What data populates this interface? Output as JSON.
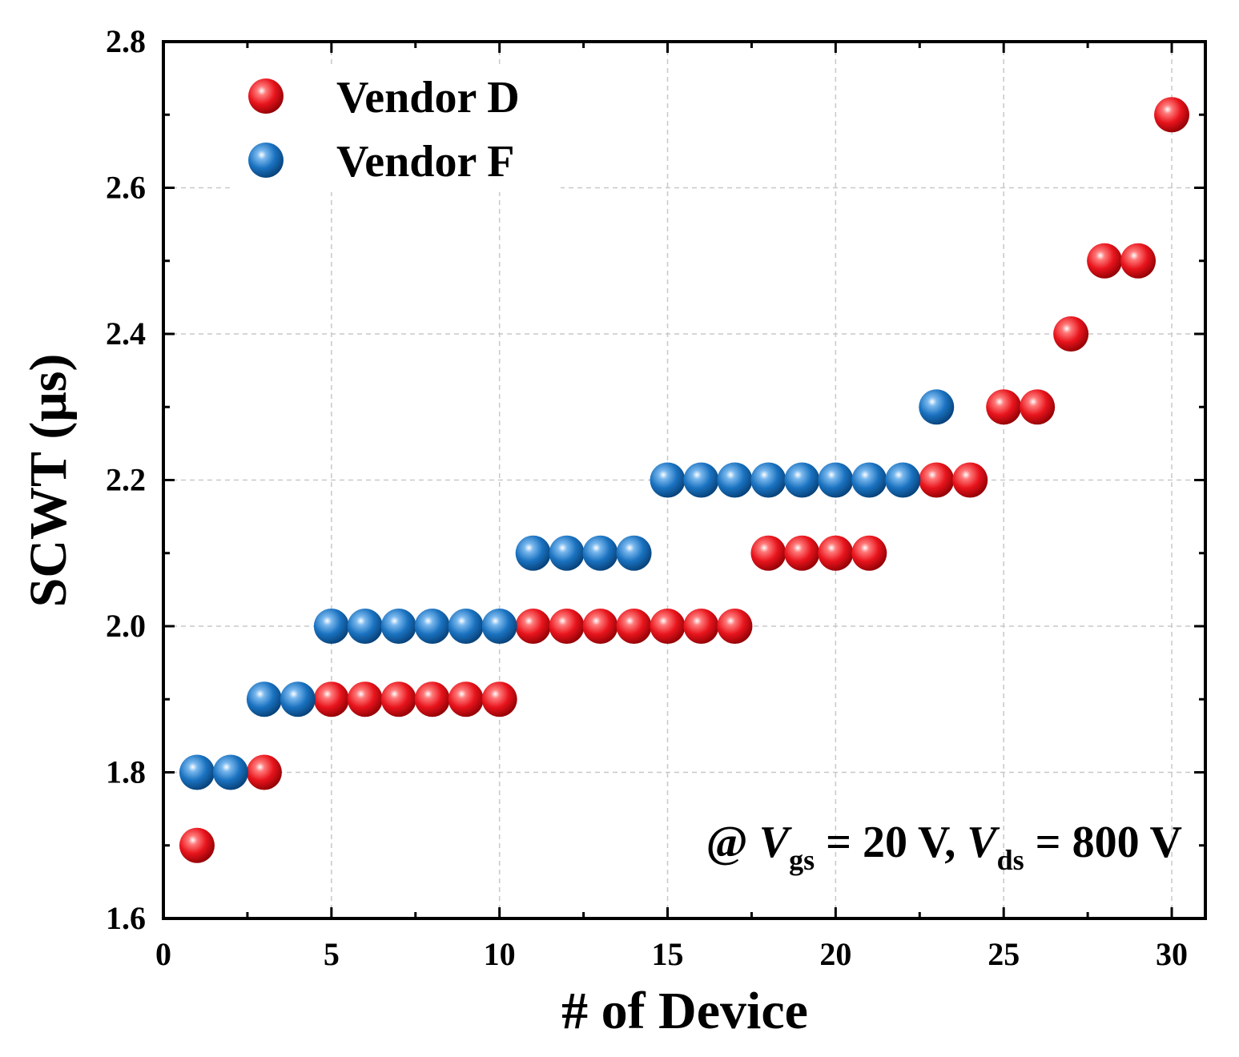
{
  "chart_data": {
    "type": "scatter",
    "title": "",
    "xlabel": "# of Device",
    "ylabel": "SCWT (μs)",
    "xlim": [
      0,
      31
    ],
    "ylim": [
      1.6,
      2.8
    ],
    "xticks": [
      "0",
      "5",
      "10",
      "15",
      "20",
      "25",
      "30"
    ],
    "yticks": [
      "1.6",
      "1.8",
      "2.0",
      "2.2",
      "2.4",
      "2.6",
      "2.8"
    ],
    "grid": true,
    "legend_position": "top-left",
    "annotation": {
      "prefix": "@ ",
      "v1": "V",
      "sub1": "gs",
      "mid": " = 20 V, ",
      "v2": "V",
      "sub2": "ds",
      "suffix": " = 800 V"
    },
    "series": [
      {
        "name": "Vendor D",
        "color": "#e8141c",
        "x": [
          1,
          3,
          5,
          6,
          7,
          8,
          9,
          10,
          11,
          12,
          13,
          14,
          15,
          16,
          17,
          18,
          19,
          20,
          21,
          23,
          24,
          25,
          26,
          27,
          28,
          29,
          30
        ],
        "y": [
          1.7,
          1.8,
          1.9,
          1.9,
          1.9,
          1.9,
          1.9,
          1.9,
          2.0,
          2.0,
          2.0,
          2.0,
          2.0,
          2.0,
          2.0,
          2.1,
          2.1,
          2.1,
          2.1,
          2.2,
          2.2,
          2.3,
          2.3,
          2.4,
          2.5,
          2.5,
          2.7
        ]
      },
      {
        "name": "Vendor F",
        "color": "#1a72c0",
        "x": [
          1,
          2,
          3,
          4,
          5,
          6,
          7,
          8,
          9,
          10,
          11,
          12,
          13,
          14,
          15,
          16,
          17,
          18,
          19,
          20,
          21,
          22,
          23
        ],
        "y": [
          1.8,
          1.8,
          1.9,
          1.9,
          2.0,
          2.0,
          2.0,
          2.0,
          2.0,
          2.0,
          2.1,
          2.1,
          2.1,
          2.1,
          2.2,
          2.2,
          2.2,
          2.2,
          2.2,
          2.2,
          2.2,
          2.2,
          2.3
        ]
      }
    ]
  }
}
